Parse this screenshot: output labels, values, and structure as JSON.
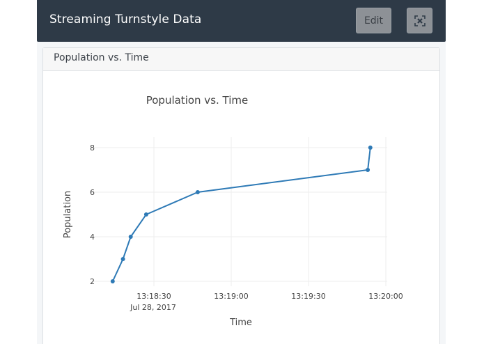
{
  "header": {
    "title": "Streaming Turnstyle Data",
    "edit_label": "Edit",
    "fullscreen_icon": "expand-icon"
  },
  "panel": {
    "title": "Population vs. Time"
  },
  "chart": {
    "title": "Population vs. Time",
    "xlabel": "Time",
    "ylabel": "Population",
    "x_ticks": [
      "13:18:30",
      "13:19:00",
      "13:19:30",
      "13:20:00"
    ],
    "x_date_label": "Jul 28, 2017",
    "y_ticks": [
      "2",
      "4",
      "6",
      "8"
    ],
    "line_color": "#2e7ab6"
  },
  "chart_data": {
    "type": "line",
    "title": "Population vs. Time",
    "xlabel": "Time",
    "ylabel": "Population",
    "x": [
      "13:18:14",
      "13:18:18",
      "13:18:21",
      "13:18:27",
      "13:18:47",
      "13:19:53",
      "13:19:54"
    ],
    "series": [
      {
        "name": "Population",
        "values": [
          2,
          3,
          4,
          5,
          6,
          7,
          8
        ]
      }
    ],
    "x_date": "Jul 28, 2017",
    "x_ticks": [
      "13:18:30",
      "13:19:00",
      "13:19:30",
      "13:20:00"
    ],
    "y_ticks": [
      2,
      4,
      6,
      8
    ],
    "ylim": [
      1.8,
      8.2
    ],
    "grid": true,
    "legend": "none"
  }
}
